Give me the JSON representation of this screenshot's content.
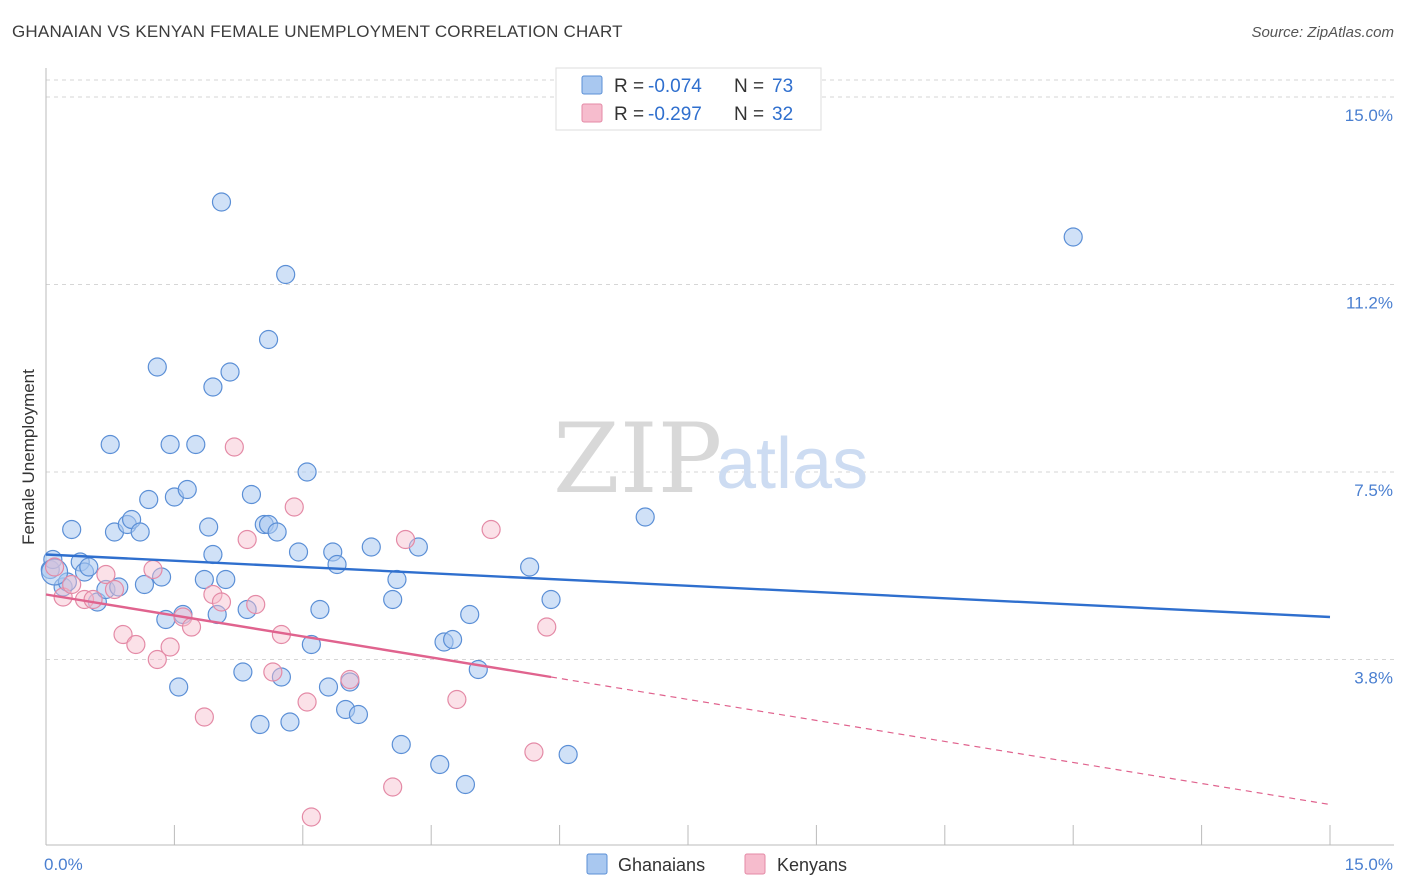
{
  "title": "GHANAIAN VS KENYAN FEMALE UNEMPLOYMENT CORRELATION CHART",
  "source": "Source: ZipAtlas.com",
  "watermark": {
    "zip": "ZIP",
    "atlas": "atlas"
  },
  "legend": {
    "rows": [
      {
        "r_label": "R =",
        "r_value": "-0.074",
        "n_label": "N =",
        "n_value": "73",
        "color": "#a9c8f0"
      },
      {
        "r_label": "R =",
        "r_value": "-0.297",
        "n_label": "N =",
        "n_value": "32",
        "color": "#f6bccd"
      }
    ]
  },
  "bottom_legend": [
    {
      "label": "Ghanaians",
      "color": "#a9c8f0"
    },
    {
      "label": "Kenyans",
      "color": "#f6bccd"
    }
  ],
  "chart_data": {
    "type": "scatter",
    "title": "GHANAIAN VS KENYAN FEMALE UNEMPLOYMENT CORRELATION CHART",
    "xlabel": "",
    "ylabel": "Female Unemployment",
    "xlim": [
      0,
      15
    ],
    "ylim": [
      0,
      15
    ],
    "x_tick_labels": [
      "0.0%",
      "15.0%"
    ],
    "y_ticks": [
      {
        "value": 3.75,
        "label": "3.8%"
      },
      {
        "value": 7.5,
        "label": "7.5%"
      },
      {
        "value": 11.25,
        "label": "11.2%"
      },
      {
        "value": 15.0,
        "label": "15.0%"
      }
    ],
    "grid": "horizontal dashed",
    "legend_position": "top-center",
    "series": [
      {
        "name": "Ghanaians",
        "color": "#a9c8f0",
        "stroke": "#5b8fd6",
        "line_color": "#2f6fce",
        "trend": {
          "x0": 0.0,
          "y0": 5.85,
          "x1": 15.0,
          "y1": 4.6,
          "dashed_to": null
        },
        "points": [
          [
            0.05,
            5.55
          ],
          [
            0.08,
            5.75
          ],
          [
            0.2,
            5.2
          ],
          [
            0.25,
            5.3
          ],
          [
            0.3,
            6.35
          ],
          [
            0.4,
            5.7
          ],
          [
            0.45,
            5.5
          ],
          [
            0.5,
            5.6
          ],
          [
            0.6,
            4.9
          ],
          [
            0.7,
            5.15
          ],
          [
            0.75,
            8.05
          ],
          [
            0.8,
            6.3
          ],
          [
            0.85,
            5.2
          ],
          [
            0.95,
            6.45
          ],
          [
            1.0,
            6.55
          ],
          [
            1.1,
            6.3
          ],
          [
            1.15,
            5.25
          ],
          [
            1.2,
            6.95
          ],
          [
            1.3,
            9.6
          ],
          [
            1.35,
            5.4
          ],
          [
            1.4,
            4.55
          ],
          [
            1.45,
            8.05
          ],
          [
            1.5,
            7.0
          ],
          [
            1.55,
            3.2
          ],
          [
            1.6,
            4.65
          ],
          [
            1.65,
            7.15
          ],
          [
            1.75,
            8.05
          ],
          [
            1.85,
            5.35
          ],
          [
            1.9,
            6.4
          ],
          [
            1.95,
            5.85
          ],
          [
            1.95,
            9.2
          ],
          [
            2.0,
            4.65
          ],
          [
            2.05,
            12.9
          ],
          [
            2.1,
            5.35
          ],
          [
            2.15,
            9.5
          ],
          [
            2.3,
            3.5
          ],
          [
            2.35,
            4.75
          ],
          [
            2.4,
            7.05
          ],
          [
            2.5,
            2.45
          ],
          [
            2.55,
            6.45
          ],
          [
            2.6,
            10.15
          ],
          [
            2.6,
            6.45
          ],
          [
            2.7,
            6.3
          ],
          [
            2.75,
            3.4
          ],
          [
            2.8,
            11.45
          ],
          [
            2.85,
            2.5
          ],
          [
            2.95,
            5.9
          ],
          [
            3.05,
            7.5
          ],
          [
            3.1,
            4.05
          ],
          [
            3.2,
            4.75
          ],
          [
            3.3,
            3.2
          ],
          [
            3.35,
            5.9
          ],
          [
            3.4,
            5.65
          ],
          [
            3.5,
            2.75
          ],
          [
            3.55,
            3.3
          ],
          [
            3.65,
            2.65
          ],
          [
            3.8,
            6.0
          ],
          [
            4.05,
            4.95
          ],
          [
            4.1,
            5.35
          ],
          [
            4.15,
            2.05
          ],
          [
            4.35,
            6.0
          ],
          [
            4.6,
            1.65
          ],
          [
            4.65,
            4.1
          ],
          [
            4.75,
            4.15
          ],
          [
            4.9,
            1.25
          ],
          [
            4.95,
            4.65
          ],
          [
            5.05,
            3.55
          ],
          [
            5.65,
            5.6
          ],
          [
            5.9,
            4.95
          ],
          [
            6.1,
            1.85
          ],
          [
            7.0,
            6.6
          ],
          [
            12.0,
            12.2
          ],
          [
            0.1,
            5.5
          ]
        ]
      },
      {
        "name": "Kenyans",
        "color": "#f6bccd",
        "stroke": "#e48aa6",
        "line_color": "#e0638e",
        "trend": {
          "x0": 0.0,
          "y0": 5.05,
          "x1": 5.9,
          "y1": 3.4,
          "dashed_to": {
            "x": 15.0,
            "y": 0.85
          }
        },
        "points": [
          [
            0.1,
            5.6
          ],
          [
            0.2,
            5.0
          ],
          [
            0.3,
            5.25
          ],
          [
            0.45,
            4.95
          ],
          [
            0.55,
            4.95
          ],
          [
            0.7,
            5.45
          ],
          [
            0.8,
            5.15
          ],
          [
            0.9,
            4.25
          ],
          [
            1.05,
            4.05
          ],
          [
            1.25,
            5.55
          ],
          [
            1.3,
            3.75
          ],
          [
            1.45,
            4.0
          ],
          [
            1.6,
            4.6
          ],
          [
            1.7,
            4.4
          ],
          [
            1.85,
            2.6
          ],
          [
            1.95,
            5.05
          ],
          [
            2.05,
            4.9
          ],
          [
            2.2,
            8.0
          ],
          [
            2.35,
            6.15
          ],
          [
            2.45,
            4.85
          ],
          [
            2.65,
            3.5
          ],
          [
            2.75,
            4.25
          ],
          [
            2.9,
            6.8
          ],
          [
            3.05,
            2.9
          ],
          [
            3.1,
            0.6
          ],
          [
            3.55,
            3.35
          ],
          [
            4.05,
            1.2
          ],
          [
            4.2,
            6.15
          ],
          [
            4.8,
            2.95
          ],
          [
            5.2,
            6.35
          ],
          [
            5.7,
            1.9
          ],
          [
            5.85,
            4.4
          ]
        ]
      }
    ]
  }
}
